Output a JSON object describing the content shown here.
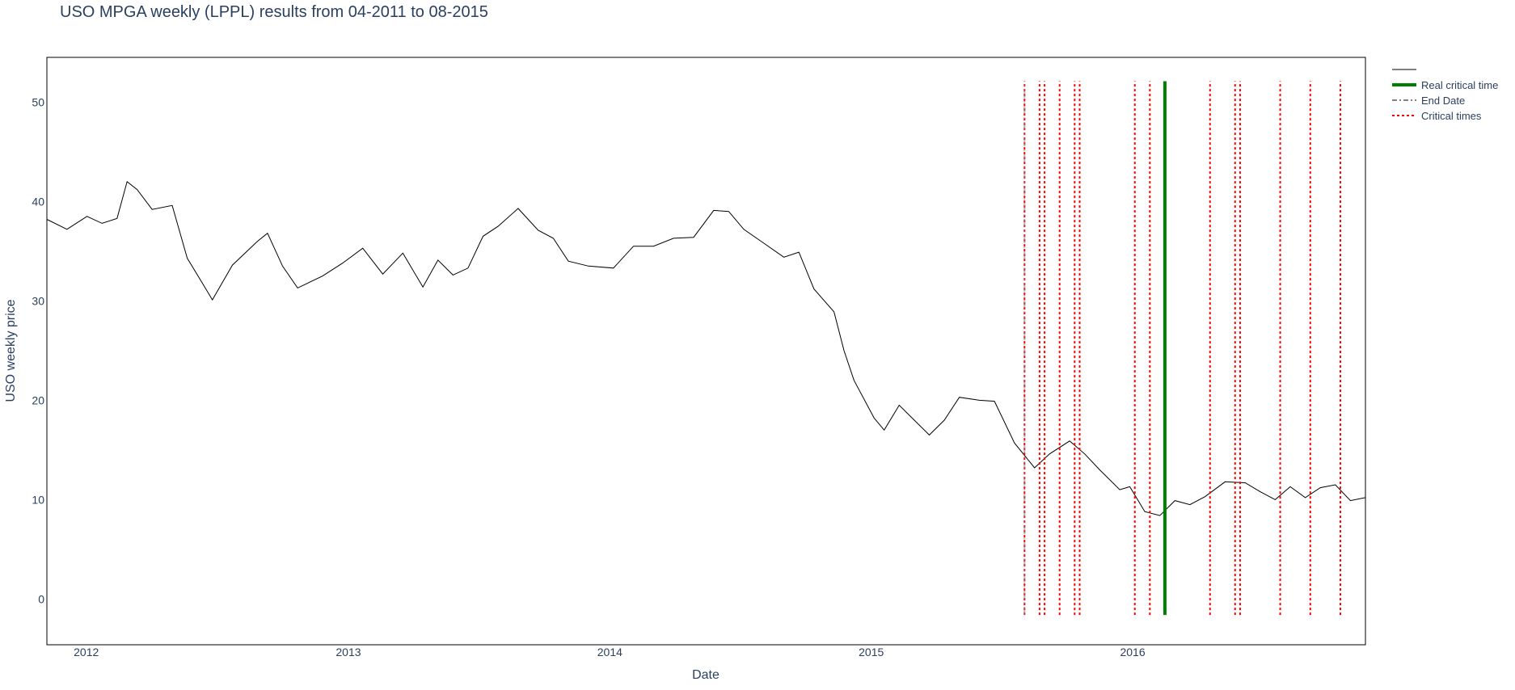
{
  "chart_data": {
    "type": "line",
    "title": "USO MPGA weekly (LPPL) results from 04-2011 to 08-2015",
    "xlabel": "Date",
    "ylabel": "USO weekly price",
    "xlim": [
      "2011-11-07",
      "2016-11-21"
    ],
    "ylim": [
      -4.6,
      54.5
    ],
    "x_ticks": [
      {
        "date": "2012-01-01",
        "label": "2012"
      },
      {
        "date": "2013-01-01",
        "label": "2013"
      },
      {
        "date": "2014-01-01",
        "label": "2014"
      },
      {
        "date": "2015-01-01",
        "label": "2015"
      },
      {
        "date": "2016-01-01",
        "label": "2016"
      }
    ],
    "y_ticks": [
      0,
      10,
      20,
      30,
      40,
      50
    ],
    "grid": false,
    "legend_position": "top-right",
    "legend": [
      {
        "label": "",
        "color": "#000000",
        "style": "solid"
      },
      {
        "label": "Real critical time",
        "color": "#008000",
        "style": "solid"
      },
      {
        "label": "End Date",
        "color": "#808080",
        "style": "dashdot"
      },
      {
        "label": "Critical times",
        "color": "#ff0000",
        "style": "dot"
      }
    ],
    "series": [
      {
        "color": "#000000",
        "points": [
          [
            "2011-11-07",
            38.2
          ],
          [
            "2011-12-05",
            37.2
          ],
          [
            "2012-01-02",
            38.5
          ],
          [
            "2012-01-23",
            37.8
          ],
          [
            "2012-02-13",
            38.3
          ],
          [
            "2012-02-27",
            42.0
          ],
          [
            "2012-03-12",
            41.2
          ],
          [
            "2012-04-02",
            39.2
          ],
          [
            "2012-04-30",
            39.6
          ],
          [
            "2012-05-21",
            34.3
          ],
          [
            "2012-06-11",
            31.8
          ],
          [
            "2012-06-25",
            30.1
          ],
          [
            "2012-07-23",
            33.6
          ],
          [
            "2012-08-27",
            36.0
          ],
          [
            "2012-09-10",
            36.8
          ],
          [
            "2012-10-01",
            33.5
          ],
          [
            "2012-10-22",
            31.3
          ],
          [
            "2012-11-26",
            32.5
          ],
          [
            "2012-12-24",
            33.8
          ],
          [
            "2013-01-21",
            35.3
          ],
          [
            "2013-02-18",
            32.7
          ],
          [
            "2013-03-18",
            34.8
          ],
          [
            "2013-04-15",
            31.4
          ],
          [
            "2013-05-06",
            34.1
          ],
          [
            "2013-05-27",
            32.6
          ],
          [
            "2013-06-17",
            33.3
          ],
          [
            "2013-07-08",
            36.5
          ],
          [
            "2013-07-29",
            37.5
          ],
          [
            "2013-08-26",
            39.3
          ],
          [
            "2013-09-23",
            37.1
          ],
          [
            "2013-10-14",
            36.3
          ],
          [
            "2013-11-04",
            34.0
          ],
          [
            "2013-12-02",
            33.5
          ],
          [
            "2014-01-06",
            33.3
          ],
          [
            "2014-02-03",
            35.5
          ],
          [
            "2014-03-03",
            35.5
          ],
          [
            "2014-03-31",
            36.3
          ],
          [
            "2014-04-28",
            36.4
          ],
          [
            "2014-05-26",
            39.1
          ],
          [
            "2014-06-16",
            39.0
          ],
          [
            "2014-07-07",
            37.2
          ],
          [
            "2014-08-04",
            35.8
          ],
          [
            "2014-09-01",
            34.4
          ],
          [
            "2014-09-22",
            34.9
          ],
          [
            "2014-10-13",
            31.2
          ],
          [
            "2014-11-10",
            28.9
          ],
          [
            "2014-11-24",
            25.0
          ],
          [
            "2014-12-08",
            22.0
          ],
          [
            "2015-01-05",
            18.2
          ],
          [
            "2015-01-19",
            17.0
          ],
          [
            "2015-02-09",
            19.5
          ],
          [
            "2015-03-02",
            18.0
          ],
          [
            "2015-03-23",
            16.5
          ],
          [
            "2015-04-13",
            18.0
          ],
          [
            "2015-05-04",
            20.3
          ],
          [
            "2015-06-01",
            20.0
          ],
          [
            "2015-06-22",
            19.9
          ],
          [
            "2015-07-20",
            15.7
          ],
          [
            "2015-08-17",
            13.2
          ],
          [
            "2015-09-07",
            14.6
          ],
          [
            "2015-10-05",
            15.9
          ],
          [
            "2015-10-26",
            14.6
          ],
          [
            "2015-11-16",
            13.0
          ],
          [
            "2015-12-14",
            11.0
          ],
          [
            "2015-12-28",
            11.3
          ],
          [
            "2016-01-18",
            8.8
          ],
          [
            "2016-02-08",
            8.4
          ],
          [
            "2016-02-29",
            9.9
          ],
          [
            "2016-03-21",
            9.5
          ],
          [
            "2016-04-11",
            10.3
          ],
          [
            "2016-05-09",
            11.8
          ],
          [
            "2016-06-06",
            11.7
          ],
          [
            "2016-06-27",
            10.8
          ],
          [
            "2016-07-18",
            10.0
          ],
          [
            "2016-08-08",
            11.3
          ],
          [
            "2016-08-29",
            10.2
          ],
          [
            "2016-09-19",
            11.2
          ],
          [
            "2016-10-10",
            11.5
          ],
          [
            "2016-10-31",
            9.9
          ],
          [
            "2016-11-21",
            10.2
          ]
        ]
      }
    ],
    "critical_times": [
      "2015-08-03",
      "2015-08-24",
      "2015-08-31",
      "2015-09-21",
      "2015-10-12",
      "2015-10-19",
      "2016-01-04",
      "2016-01-25",
      "2016-04-18",
      "2016-05-23",
      "2016-05-30",
      "2016-07-25",
      "2016-09-05",
      "2016-10-17"
    ],
    "end_date": "2015-08-03",
    "real_critical_time": "2016-02-15",
    "vline_range": [
      -1.6,
      52.1
    ]
  }
}
